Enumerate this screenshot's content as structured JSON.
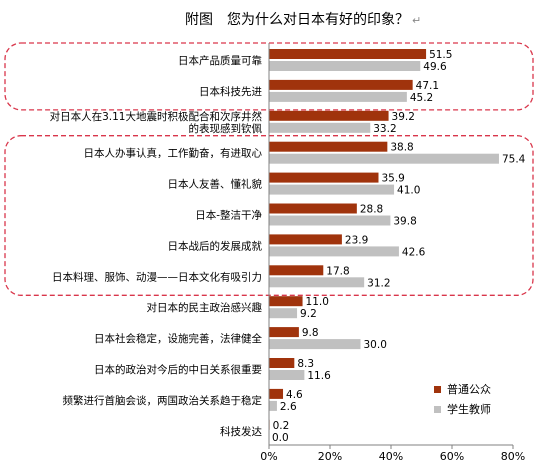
{
  "chart_data": {
    "type": "bar",
    "orientation": "horizontal",
    "title": "附图　您为什么对日本有好的印象？",
    "title_mark": "↵",
    "categories": [
      [
        "日本产品质量可靠"
      ],
      [
        "日本科技先进"
      ],
      [
        "对日本人在3.11大地震时积极配合和次序井然",
        "的表现感到钦佩"
      ],
      [
        "日本人办事认真，工作勤奋，有进取心"
      ],
      [
        "日本人友善、懂礼貌"
      ],
      [
        "日本-整洁干净"
      ],
      [
        "日本战后的发展成就"
      ],
      [
        "日本料理、服饰、动漫——日本文化有吸引力"
      ],
      [
        "对日本的民主政治感兴趣"
      ],
      [
        "日本社会稳定，设施完善，法律健全"
      ],
      [
        "日本的政治对今后的中日关系很重要"
      ],
      [
        "频繁进行首脑会谈，两国政治关系趋于稳定"
      ],
      [
        "科技发达"
      ]
    ],
    "series": [
      {
        "name": "普通公众",
        "color": "#a0330c",
        "values": [
          51.5,
          47.1,
          39.2,
          38.8,
          35.9,
          28.8,
          23.9,
          17.8,
          11.0,
          9.8,
          8.3,
          4.6,
          0.2
        ]
      },
      {
        "name": "学生教师",
        "color": "#c0c0c0",
        "values": [
          49.6,
          45.2,
          33.2,
          75.4,
          41.0,
          39.8,
          42.6,
          31.2,
          9.2,
          30.0,
          11.6,
          2.6,
          0.0
        ]
      }
    ],
    "xlim": [
      0,
      80
    ],
    "x_ticks": [
      "0%",
      "20%",
      "40%",
      "60%",
      "80%"
    ],
    "grid": false,
    "legend_position": "bottom-right",
    "highlight_groups": [
      [
        0,
        1
      ],
      [
        3,
        7
      ]
    ],
    "highlight_color": "#d9364b"
  }
}
